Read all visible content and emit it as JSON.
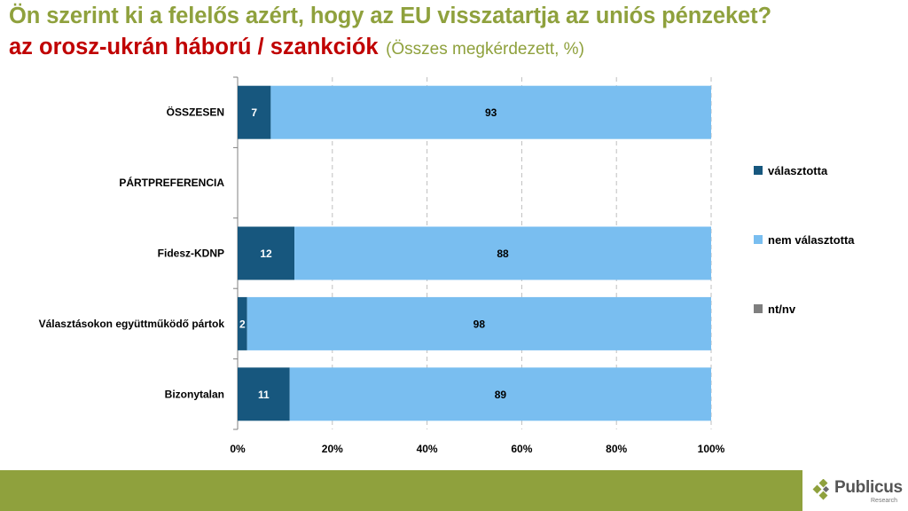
{
  "header": {
    "title": "Ön szerint ki a felelős azért, hogy az EU visszatartja az uniós pénzeket?",
    "subtitle_main": "az orosz-ukrán háború / szankciók",
    "subtitle_note": "(Összes megkérdezett, %)"
  },
  "brand": {
    "name": "Publicus",
    "tagline": "Research",
    "icon": "publicus-logo-icon",
    "color_green": "#8fa13d",
    "color_red": "#c00000"
  },
  "chart_data": {
    "type": "bar",
    "orientation": "horizontal",
    "stacked": true,
    "categories": [
      "ÖSSZESEN",
      "PÁRTPREFERENCIA",
      "Fidesz-KDNP",
      "Választásokon együttműködő pártok",
      "Bizonytalan"
    ],
    "series": [
      {
        "name": "választotta",
        "color": "#17577e",
        "values": [
          7,
          null,
          12,
          2,
          11
        ]
      },
      {
        "name": "nem választotta",
        "color": "#79bef0",
        "values": [
          93,
          null,
          88,
          98,
          89
        ]
      },
      {
        "name": "nt/nv",
        "color": "#7f7f7f",
        "values": [
          null,
          null,
          null,
          null,
          null
        ]
      }
    ],
    "xlim": [
      0,
      100
    ],
    "xticks": [
      "0%",
      "20%",
      "40%",
      "60%",
      "80%",
      "100%"
    ],
    "grid": "vertical dashed",
    "legend_position": "right"
  }
}
